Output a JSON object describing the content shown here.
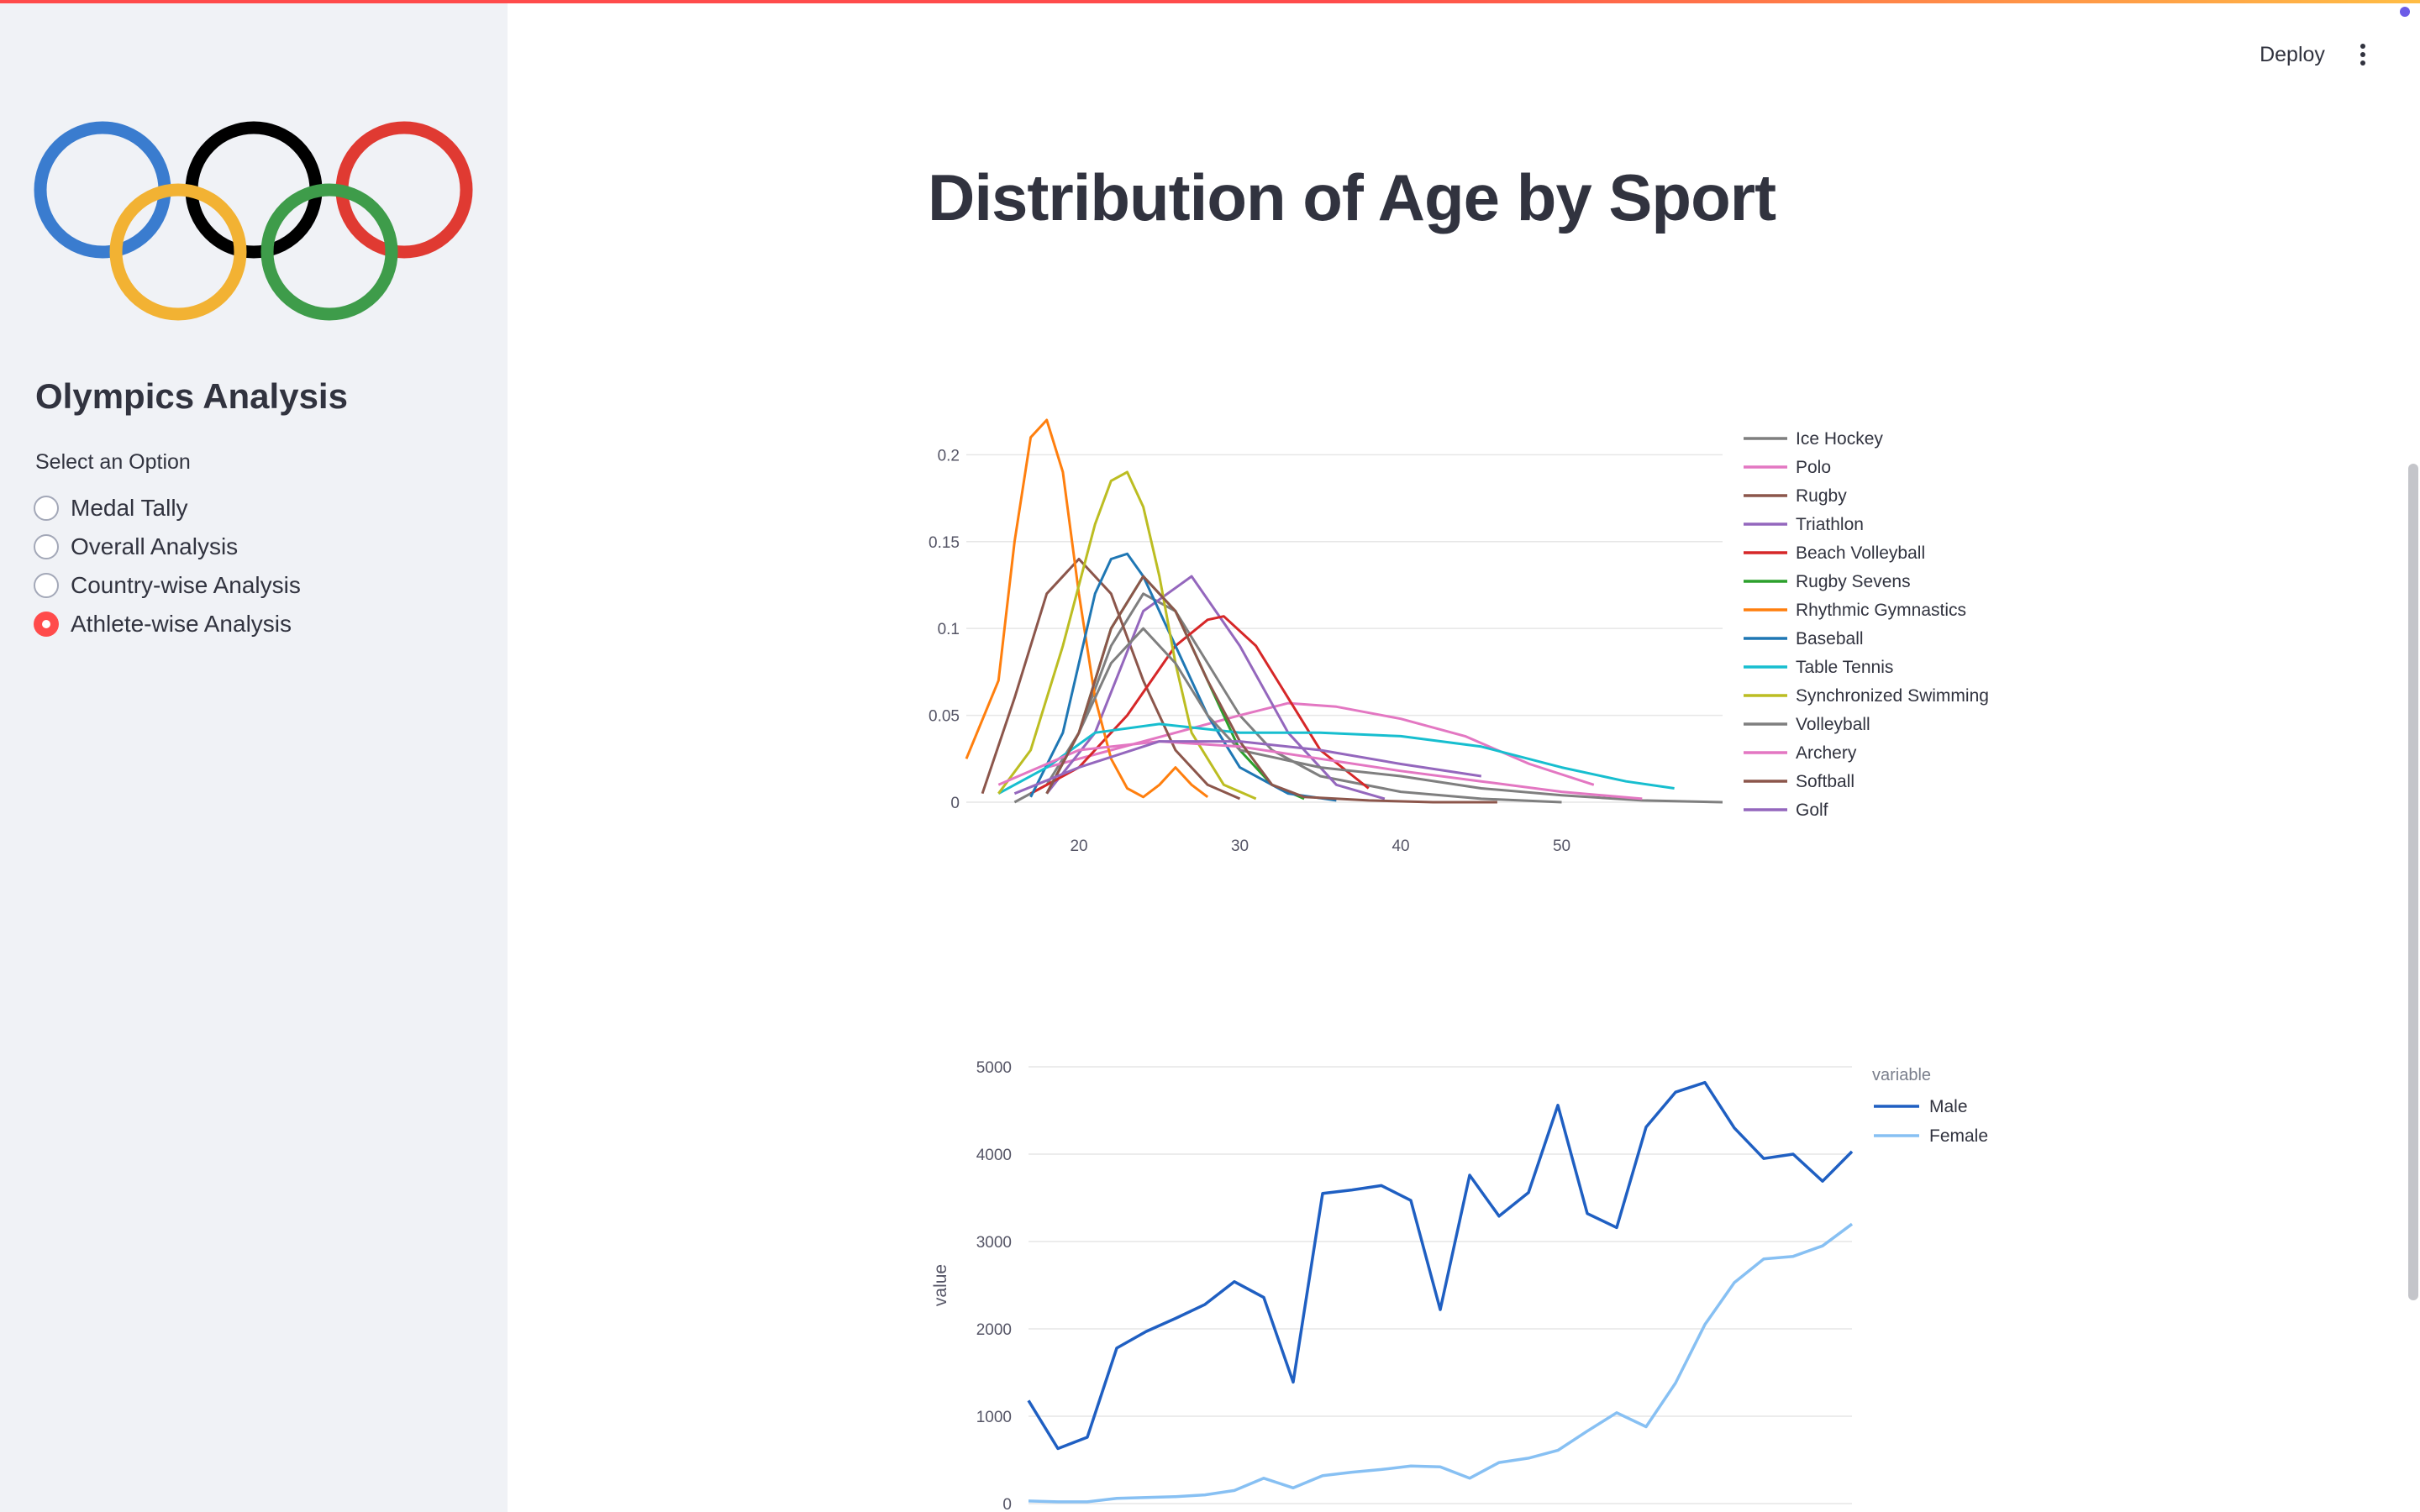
{
  "sidebar": {
    "title": "Olympics Analysis",
    "radio_label": "Select an Option",
    "options": [
      {
        "label": "Medal Tally",
        "selected": false
      },
      {
        "label": "Overall Analysis",
        "selected": false
      },
      {
        "label": "Country-wise Analysis",
        "selected": false
      },
      {
        "label": "Athlete-wise Analysis",
        "selected": true
      }
    ],
    "logo_colors": [
      "#3a7ccf",
      "#000000",
      "#e03a32",
      "#f2b233",
      "#3e9c4a"
    ],
    "accent_color": "#ff4b4b"
  },
  "header": {
    "deploy_label": "Deploy",
    "menu_icon": "vertical-ellipsis-icon"
  },
  "main": {
    "title": "Distribution of Age by Sport"
  },
  "chart_data": [
    {
      "type": "line",
      "title": "",
      "xlabel": "",
      "ylabel": "",
      "xlim": [
        13,
        60
      ],
      "ylim": [
        0,
        0.22
      ],
      "x_ticks": [
        20,
        30,
        40,
        50
      ],
      "y_ticks": [
        0,
        0.05,
        0.1,
        0.15,
        0.2
      ],
      "y_tick_labels": [
        "0",
        "0.05",
        "0.1",
        "0.15",
        "0.2"
      ],
      "legend_position": "right",
      "series": [
        {
          "name": "Ice Hockey",
          "color": "#7f7f7f",
          "x": [
            16,
            18,
            20,
            22,
            24,
            26,
            28,
            30,
            32,
            35,
            40,
            45,
            50
          ],
          "y": [
            0,
            0.01,
            0.04,
            0.09,
            0.12,
            0.11,
            0.08,
            0.05,
            0.03,
            0.015,
            0.006,
            0.002,
            0
          ]
        },
        {
          "name": "Polo",
          "color": "#e377c2",
          "x": [
            18,
            22,
            26,
            30,
            33,
            36,
            40,
            44,
            48,
            52
          ],
          "y": [
            0.02,
            0.03,
            0.04,
            0.05,
            0.057,
            0.055,
            0.048,
            0.038,
            0.022,
            0.01
          ]
        },
        {
          "name": "Rugby",
          "color": "#8c564b",
          "x": [
            14,
            16,
            18,
            20,
            22,
            24,
            26,
            28,
            30
          ],
          "y": [
            0.005,
            0.06,
            0.12,
            0.14,
            0.12,
            0.07,
            0.03,
            0.01,
            0.002
          ]
        },
        {
          "name": "Triathlon",
          "color": "#9467bd",
          "x": [
            18,
            21,
            24,
            27,
            30,
            33,
            36,
            39
          ],
          "y": [
            0.005,
            0.04,
            0.11,
            0.13,
            0.09,
            0.04,
            0.01,
            0.002
          ]
        },
        {
          "name": "Beach Volleyball",
          "color": "#d62728",
          "x": [
            17,
            20,
            23,
            26,
            28,
            29,
            31,
            33,
            35,
            38
          ],
          "y": [
            0.005,
            0.02,
            0.05,
            0.09,
            0.105,
            0.107,
            0.09,
            0.06,
            0.03,
            0.008
          ]
        },
        {
          "name": "Rugby Sevens",
          "color": "#2ca02c",
          "x": [
            18,
            20,
            22,
            24,
            26,
            28,
            30,
            32,
            34
          ],
          "y": [
            0.005,
            0.04,
            0.1,
            0.13,
            0.11,
            0.07,
            0.03,
            0.01,
            0.002
          ]
        },
        {
          "name": "Rhythmic Gymnastics",
          "color": "#ff7f0e",
          "x": [
            13,
            15,
            16,
            17,
            18,
            19,
            20,
            21,
            22,
            23,
            24,
            25,
            26,
            27,
            28
          ],
          "y": [
            0.025,
            0.07,
            0.15,
            0.21,
            0.22,
            0.19,
            0.12,
            0.06,
            0.025,
            0.008,
            0.003,
            0.01,
            0.02,
            0.01,
            0.003
          ]
        },
        {
          "name": "Baseball",
          "color": "#1f77b4",
          "x": [
            17,
            19,
            21,
            22,
            23,
            24,
            26,
            28,
            30,
            33,
            36
          ],
          "y": [
            0.003,
            0.04,
            0.12,
            0.14,
            0.143,
            0.13,
            0.09,
            0.05,
            0.02,
            0.005,
            0.001
          ]
        },
        {
          "name": "Table Tennis",
          "color": "#17becf",
          "x": [
            15,
            18,
            21,
            25,
            30,
            35,
            40,
            45,
            50,
            54,
            57
          ],
          "y": [
            0.005,
            0.02,
            0.04,
            0.045,
            0.04,
            0.04,
            0.038,
            0.032,
            0.02,
            0.012,
            0.008
          ]
        },
        {
          "name": "Synchronized Swimming",
          "color": "#bcbd22",
          "x": [
            15,
            17,
            19,
            21,
            22,
            23,
            24,
            25,
            26,
            27,
            29,
            31
          ],
          "y": [
            0.005,
            0.03,
            0.09,
            0.16,
            0.185,
            0.19,
            0.17,
            0.13,
            0.08,
            0.04,
            0.01,
            0.002
          ]
        },
        {
          "name": "Volleyball",
          "color": "#7f7f7f",
          "x": [
            18,
            20,
            22,
            24,
            26,
            28,
            30,
            35,
            40,
            45,
            50,
            55,
            60
          ],
          "y": [
            0.005,
            0.04,
            0.08,
            0.1,
            0.08,
            0.05,
            0.03,
            0.02,
            0.015,
            0.008,
            0.004,
            0.001,
            0
          ]
        },
        {
          "name": "Archery",
          "color": "#e377c2",
          "x": [
            15,
            20,
            25,
            30,
            35,
            40,
            45,
            50,
            55
          ],
          "y": [
            0.01,
            0.03,
            0.035,
            0.032,
            0.025,
            0.018,
            0.012,
            0.006,
            0.002
          ]
        },
        {
          "name": "Softball",
          "color": "#8c564b",
          "x": [
            18,
            20,
            22,
            24,
            26,
            28,
            30,
            32,
            34,
            38,
            42,
            46
          ],
          "y": [
            0.005,
            0.04,
            0.1,
            0.13,
            0.11,
            0.07,
            0.035,
            0.01,
            0.003,
            0.001,
            0,
            0
          ]
        },
        {
          "name": "Golf",
          "color": "#9467bd",
          "x": [
            16,
            20,
            25,
            30,
            35,
            40,
            45
          ],
          "y": [
            0.005,
            0.02,
            0.035,
            0.035,
            0.03,
            0.022,
            0.015
          ]
        }
      ]
    },
    {
      "type": "line",
      "title": "",
      "xlabel": "",
      "ylabel": "value",
      "ylim": [
        0,
        5000
      ],
      "y_ticks": [
        0,
        1000,
        2000,
        3000,
        4000,
        5000
      ],
      "legend_title": "variable",
      "legend_position": "right",
      "series": [
        {
          "name": "Male",
          "color": "#1f5fc2",
          "values": [
            1180,
            630,
            760,
            1780,
            1970,
            2120,
            2280,
            2540,
            2360,
            1390,
            3550,
            3590,
            3640,
            3470,
            2220,
            3760,
            3290,
            3560,
            4560,
            3320,
            3160,
            4310,
            4710,
            4820,
            4300,
            3950,
            4000,
            3690,
            4030
          ]
        },
        {
          "name": "Female",
          "color": "#87c0f3",
          "values": [
            30,
            20,
            20,
            60,
            70,
            80,
            100,
            150,
            290,
            180,
            320,
            360,
            390,
            430,
            420,
            290,
            470,
            520,
            610,
            830,
            1040,
            880,
            1380,
            2050,
            2530,
            2800,
            2830,
            2950,
            3200
          ]
        }
      ]
    }
  ]
}
